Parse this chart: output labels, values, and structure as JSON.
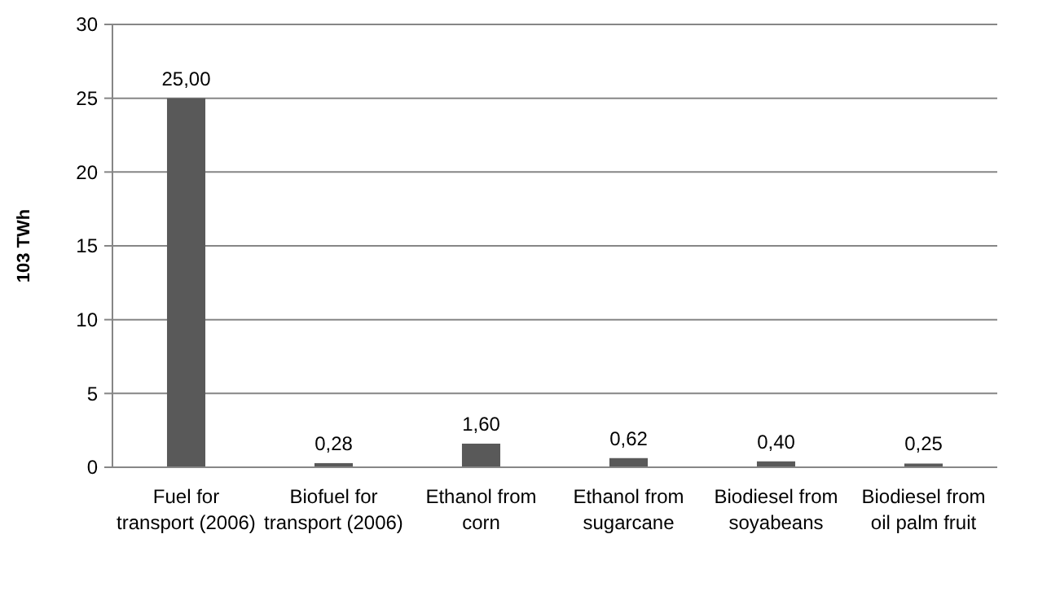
{
  "chart_data": {
    "type": "bar",
    "ylabel": "103 TWh",
    "categories": [
      "Fuel for transport (2006)",
      "Biofuel for transport (2006)",
      "Ethanol from corn",
      "Ethanol from sugarcane",
      "Biodiesel from soyabeans",
      "Biodiesel from oil palm fruit"
    ],
    "values": [
      25.0,
      0.28,
      1.6,
      0.62,
      0.4,
      0.25
    ],
    "value_labels": [
      "25,00",
      "0,28",
      "1,60",
      "0,62",
      "0,40",
      "0,25"
    ],
    "color": "#595959",
    "ylim": [
      0,
      30
    ],
    "yticks": [
      0,
      5,
      10,
      15,
      20,
      25,
      30
    ],
    "grid": "y"
  }
}
